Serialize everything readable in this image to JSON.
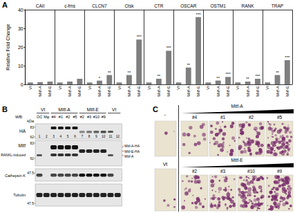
{
  "chart_data": {
    "type": "bar",
    "panel_label": "A",
    "ylabel": "Relative Fold Change",
    "groups": [
      "CAII",
      "c-fms",
      "CLCN7",
      "Ctsk",
      "CTR",
      "OSCAR",
      "OSTM1",
      "RANK",
      "TRAP"
    ],
    "categories": [
      "Vt",
      "Mitf-A",
      "Mitf-E",
      "Vt",
      "Mitf-A",
      "Mitf-E",
      "Vt",
      "Mitf-A",
      "Mitf-E",
      "Vt",
      "Mitf-A",
      "Mitf-E",
      "Vt",
      "Mitf-A",
      "Mitf-E",
      "Vt",
      "Mitf-A",
      "Mitf-E",
      "Vt",
      "Mitf-A",
      "Mitf-E",
      "Vt",
      "Mitf-A",
      "Mitf-E",
      "Vt",
      "Mitf-A",
      "Mitf-E"
    ],
    "values": [
      1,
      1.2,
      1.5,
      1,
      1.5,
      3,
      1,
      2,
      5,
      1,
      5,
      24,
      1,
      3,
      18,
      1,
      9,
      36,
      1,
      2,
      4,
      1,
      1.5,
      3,
      1,
      5,
      13
    ],
    "annotations": [
      null,
      null,
      null,
      null,
      null,
      null,
      null,
      "*",
      "**",
      null,
      "**",
      "***",
      null,
      "**",
      "***",
      null,
      "**",
      "***",
      null,
      "**",
      "***",
      null,
      "**",
      "***",
      null,
      "**",
      "***"
    ],
    "color": "#7f7f7f",
    "ylim": [
      0,
      40
    ],
    "yticks": [
      0,
      10,
      20,
      30,
      40
    ],
    "grid": false
  },
  "blot": {
    "label": "B",
    "row_label": "WB:",
    "kda_label": "kDa",
    "groups": [
      {
        "name": "Vt",
        "lanes": 2
      },
      {
        "name": "Mitf-A",
        "lanes": 4
      },
      {
        "name": "Mitf-E",
        "lanes": 4
      },
      {
        "name": "Vt",
        "lanes": 2
      }
    ],
    "lane_labels": [
      "OC",
      "Mφ",
      "#4",
      "#1",
      "#2",
      "#5",
      "#2",
      "#3",
      "#10",
      "#9",
      null,
      null
    ],
    "lane_numbers": [
      1,
      2,
      3,
      4,
      5,
      6,
      7,
      8,
      9,
      10,
      11,
      12
    ],
    "blots": [
      {
        "name": "HA",
        "markers": [
          83,
          62
        ]
      },
      {
        "name": "Mitf",
        "sublabel": "RANKL-induced",
        "markers": [
          83,
          62
        ],
        "right_labels": [
          "Mitf-A-HA",
          "Mitf-E-HA",
          "Mitf-A"
        ]
      },
      {
        "name": "Cathepsin K",
        "markers": [
          47.5
        ]
      },
      {
        "name": "Tubulin",
        "markers": [
          47.5
        ]
      }
    ]
  },
  "micrographs": {
    "label": "C",
    "control_labels": [
      "-",
      "Vt"
    ],
    "rows": [
      {
        "name": "Mitf-A",
        "clones": [
          "#4",
          "#1",
          "#2",
          "#5"
        ]
      },
      {
        "name": "Mitf-E",
        "clones": [
          "#2",
          "#3",
          "#10",
          "#9"
        ]
      }
    ]
  }
}
